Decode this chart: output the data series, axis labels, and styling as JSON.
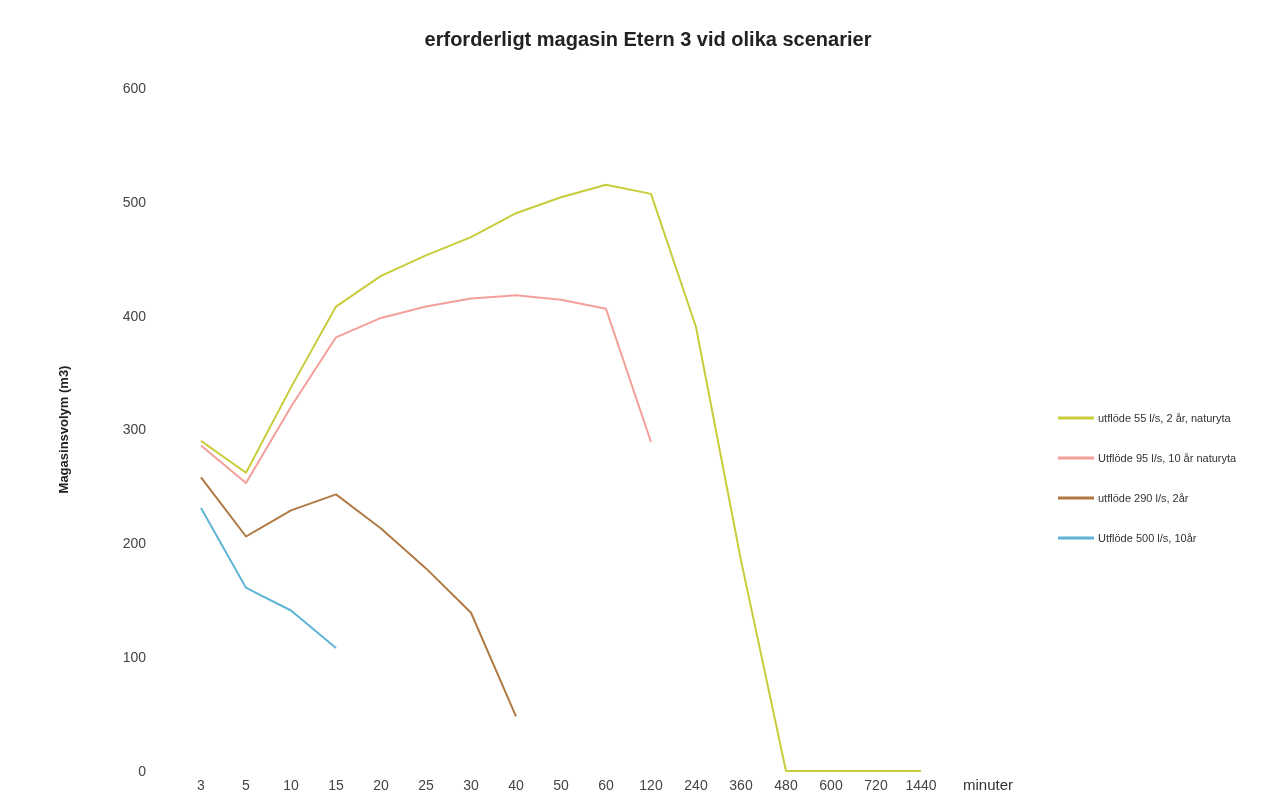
{
  "chart_data": {
    "type": "line",
    "title": "erforderligt magasin Etern 3 vid olika scenarier",
    "xlabel": "minuter",
    "ylabel": "Magasinsvolym (m3)",
    "categories": [
      "3",
      "5",
      "10",
      "15",
      "20",
      "25",
      "30",
      "40",
      "50",
      "60",
      "120",
      "240",
      "360",
      "480",
      "600",
      "720",
      "1440"
    ],
    "series": [
      {
        "name": "utflöde 55 l/s, 2 år, naturyta",
        "color": "#c8cc3a",
        "values": [
          290,
          262,
          337,
          408,
          435,
          453,
          469,
          490,
          504,
          515,
          507,
          390,
          185,
          0,
          0,
          0,
          0
        ]
      },
      {
        "name": "Utflöde 95 l/s, 10 år naturyta",
        "color": "#f4a09a",
        "values": [
          286,
          253,
          320,
          381,
          398,
          408,
          415,
          418,
          414,
          406,
          289,
          null,
          null,
          null,
          null,
          null,
          null
        ]
      },
      {
        "name": "utflöde 290 l/s, 2år",
        "color": "#b07a45",
        "values": [
          258,
          206,
          229,
          243,
          213,
          178,
          139,
          48,
          null,
          null,
          null,
          null,
          null,
          null,
          null,
          null,
          null
        ]
      },
      {
        "name": "Utflöde  500 l/s, 10år",
        "color": "#5fb3d3",
        "values": [
          231,
          161,
          141,
          108,
          null,
          null,
          null,
          null,
          null,
          null,
          null,
          null,
          null,
          null,
          null,
          null,
          null
        ]
      }
    ],
    "ylim": [
      0,
      600
    ],
    "yticks": [
      0,
      100,
      200,
      300,
      400,
      500,
      600
    ],
    "grid": false,
    "legend": "right",
    "marker": "none",
    "line_style": "solid"
  }
}
